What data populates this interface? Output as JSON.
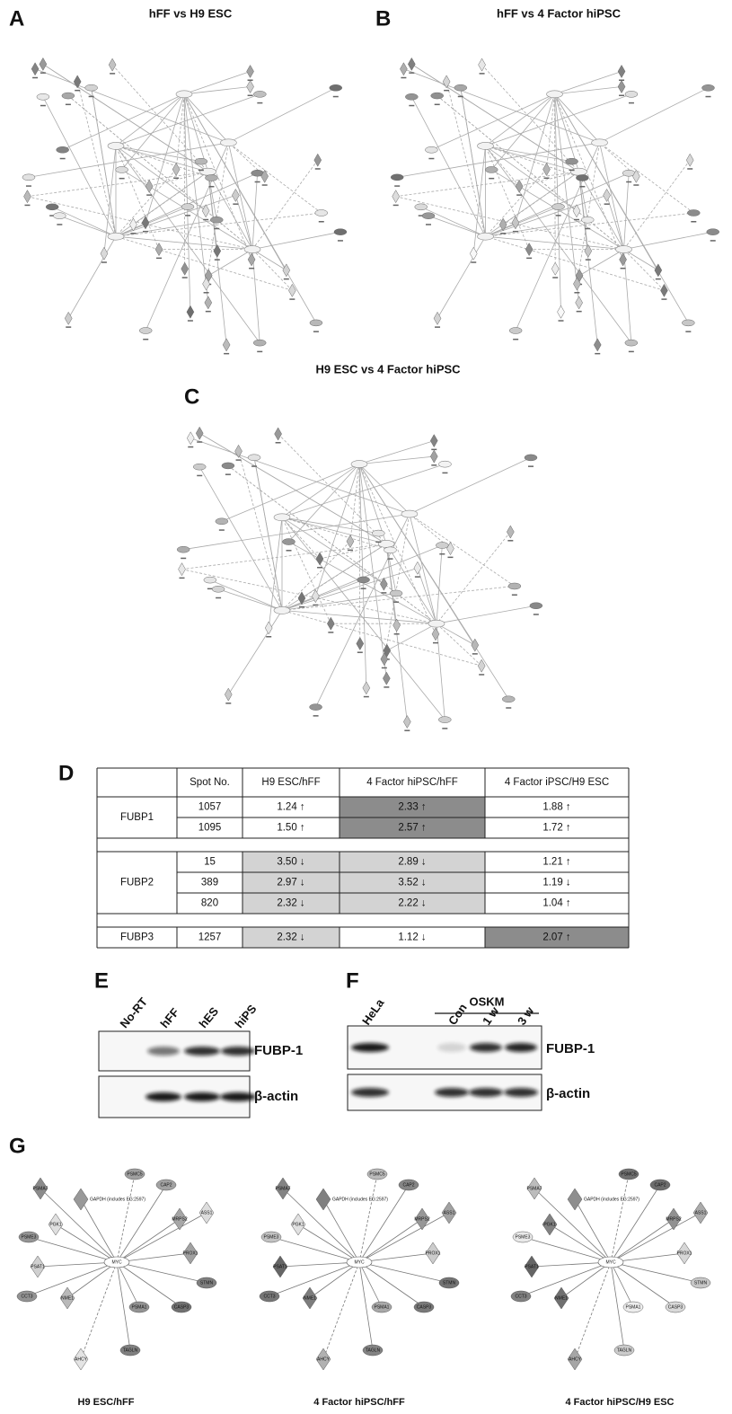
{
  "panels": {
    "a": {
      "letter": "A",
      "title": "hFF vs  H9 ESC"
    },
    "b": {
      "letter": "B",
      "title": "hFF vs 4 Factor hiPSC"
    },
    "c": {
      "letter": "C",
      "title": "H9 ESC vs 4 Factor hiPSC"
    },
    "d": {
      "letter": "D"
    },
    "e": {
      "letter": "E",
      "lanes": [
        "No-RT",
        "hFF",
        "hES",
        "hiPS"
      ],
      "blots": [
        "FUBP-1",
        "β-actin"
      ]
    },
    "f": {
      "letter": "F",
      "lanes": [
        "HeLa",
        "Con",
        "1 w",
        "3 w"
      ],
      "group": "OSKM",
      "blots": [
        "FUBP-1",
        "β-actin"
      ]
    },
    "g": {
      "letter": "G",
      "hub": "MYC",
      "nodes": [
        "PSMC5",
        "CAP2",
        "PSMA7",
        "GAPDH (includes EG:2597)",
        "MRPS2",
        "PGK1",
        "ASS1",
        "PSME3",
        "PROX1",
        "PSAT1",
        "STMN",
        "CCT3",
        "NME1",
        "PSMA1",
        "CASP3",
        "AHCY",
        "TAGLN"
      ],
      "captions": [
        "H9 ESC/hFF",
        "4 Factor hiPSC/hFF",
        "4 Factor hiPSC/H9 ESC"
      ]
    }
  },
  "table": {
    "header": [
      "Spot No.",
      "H9 ESC/hFF",
      "4 Factor hiPSC/hFF",
      "4 Factor iPSC/H9 ESC"
    ],
    "groups": [
      {
        "protein": "FUBP1",
        "rows": [
          [
            "1057",
            "1.24 ↑",
            "2.33 ↑",
            "1.88 ↑"
          ],
          [
            "1095",
            "1.50 ↑",
            "2.57 ↑",
            "1.72 ↑"
          ]
        ]
      },
      {
        "protein": "FUBP2",
        "rows": [
          [
            "15",
            "3.50 ↓",
            "2.89 ↓",
            "1.21 ↑"
          ],
          [
            "389",
            "2.97 ↓",
            "3.52 ↓",
            "1.19 ↓"
          ],
          [
            "820",
            "2.32 ↓",
            "2.22 ↓",
            "1.04 ↑"
          ]
        ]
      },
      {
        "protein": "FUBP3",
        "rows": [
          [
            "1257",
            "2.32 ↓",
            "1.12 ↓",
            "2.07 ↑"
          ]
        ]
      }
    ]
  }
}
